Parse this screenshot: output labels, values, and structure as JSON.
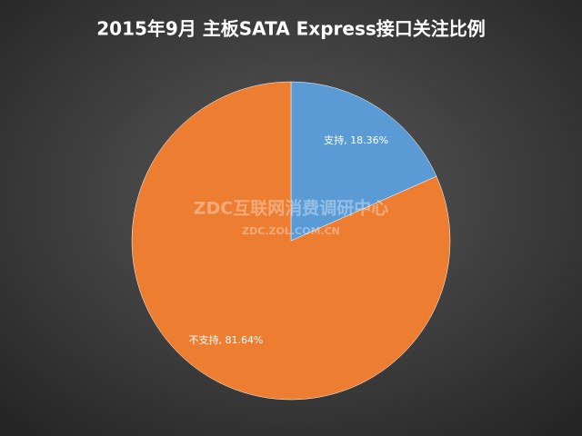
{
  "chart_data": {
    "type": "pie",
    "title": "2015年9月  主板SATA  Express接口关注比例",
    "categories": [
      "支持",
      "不支持"
    ],
    "values": [
      18.36,
      81.64
    ],
    "value_labels": [
      "支持, 18.36%",
      "不支持, 81.64%"
    ],
    "colors": [
      "#5b9bd5",
      "#ed7d31"
    ],
    "watermark": "ZDC互联网消费调研中心",
    "watermark_url": "ZDC.ZOL.COM.CN"
  }
}
